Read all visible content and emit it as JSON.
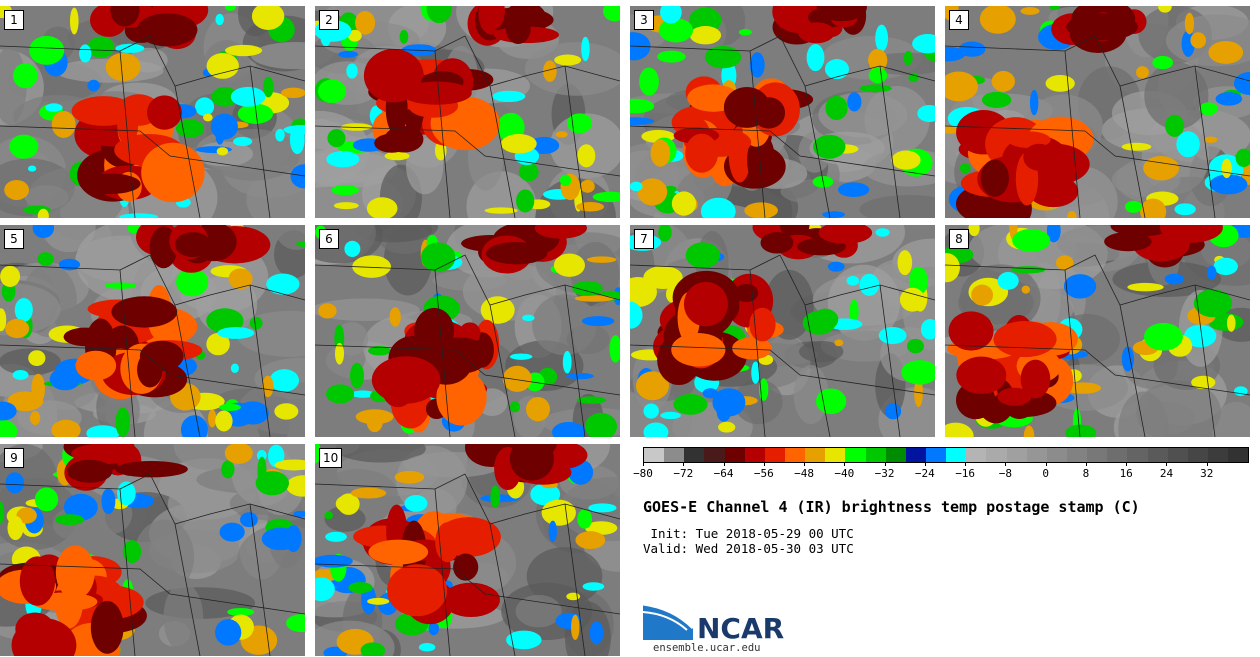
{
  "panels": [
    {
      "label": "1",
      "seed": 11
    },
    {
      "label": "2",
      "seed": 23
    },
    {
      "label": "3",
      "seed": 37
    },
    {
      "label": "4",
      "seed": 41
    },
    {
      "label": "5",
      "seed": 53
    },
    {
      "label": "6",
      "seed": 67
    },
    {
      "label": "7",
      "seed": 71
    },
    {
      "label": "8",
      "seed": 83
    },
    {
      "label": "9",
      "seed": 97
    },
    {
      "label": "10",
      "seed": 101
    }
  ],
  "colorbar": {
    "colors": [
      "#c8c8c8",
      "#8c8c8c",
      "#323232",
      "#4a1a1a",
      "#6e0000",
      "#b40000",
      "#e61e00",
      "#ff6400",
      "#e6a000",
      "#e6e600",
      "#00ff00",
      "#00c800",
      "#008c00",
      "#0014a0",
      "#0078ff",
      "#00ffff",
      "#b4b4b4",
      "#aaaaaa",
      "#a0a0a0",
      "#969696",
      "#8c8c8c",
      "#828282",
      "#787878",
      "#6e6e6e",
      "#646464",
      "#5a5a5a",
      "#505050",
      "#464646",
      "#3c3c3c",
      "#323232"
    ],
    "tick_labels": [
      "−80",
      "−72",
      "−64",
      "−56",
      "−48",
      "−40",
      "−32",
      "−24",
      "−16",
      "−8",
      "0",
      "8",
      "16",
      "24",
      "32"
    ]
  },
  "title": "GOES-E Channel 4 (IR) brightness temp postage stamp (C)",
  "init": " Init: Tue 2018-05-29 00 UTC",
  "valid": "Valid: Wed 2018-05-30 03 UTC",
  "logo_text": "NCAR",
  "site": "ensemble.ucar.edu"
}
